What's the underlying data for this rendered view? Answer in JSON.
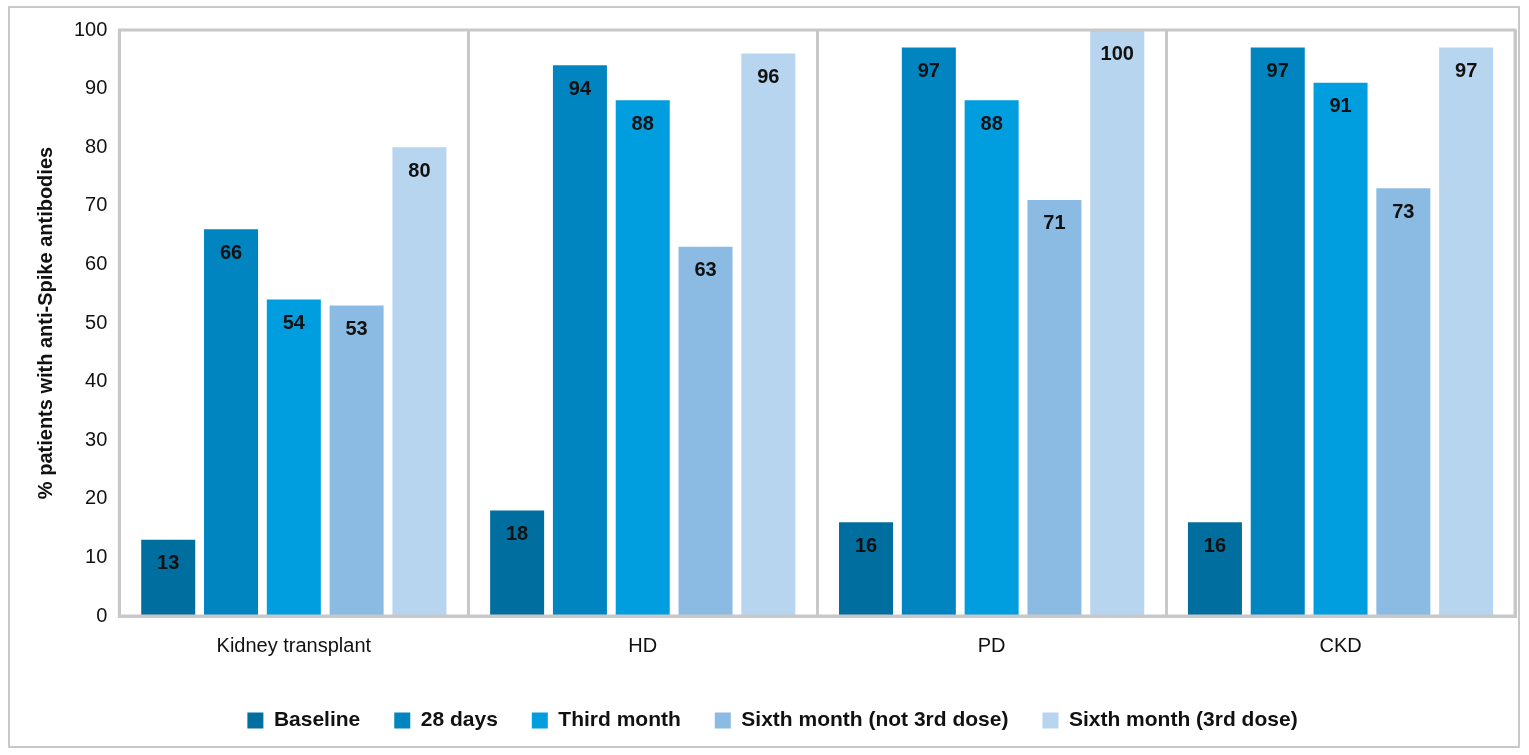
{
  "chart_data": {
    "type": "bar",
    "ylabel": "% patients with anti-Spike antibodies",
    "categories": [
      "Kidney transplant",
      "HD",
      "PD",
      "CKD"
    ],
    "series": [
      {
        "name": "Baseline",
        "color": "#006e9f",
        "values": [
          13,
          18,
          16,
          16
        ]
      },
      {
        "name": "28 days",
        "color": "#0085c1",
        "values": [
          66,
          94,
          97,
          97
        ]
      },
      {
        "name": "Third month",
        "color": "#009ddf",
        "values": [
          54,
          88,
          88,
          91
        ]
      },
      {
        "name": "Sixth month (not 3rd dose)",
        "color": "#8bbbe3",
        "values": [
          53,
          63,
          71,
          73
        ]
      },
      {
        "name": "Sixth month (3rd dose)",
        "color": "#b7d5ef",
        "values": [
          80,
          96,
          100,
          97
        ]
      }
    ],
    "ylim": [
      0,
      100
    ],
    "yticks": [
      0,
      10,
      20,
      30,
      40,
      50,
      60,
      70,
      80,
      90,
      100
    ],
    "grid": "x",
    "legend": "bottom",
    "data_labels": true
  }
}
